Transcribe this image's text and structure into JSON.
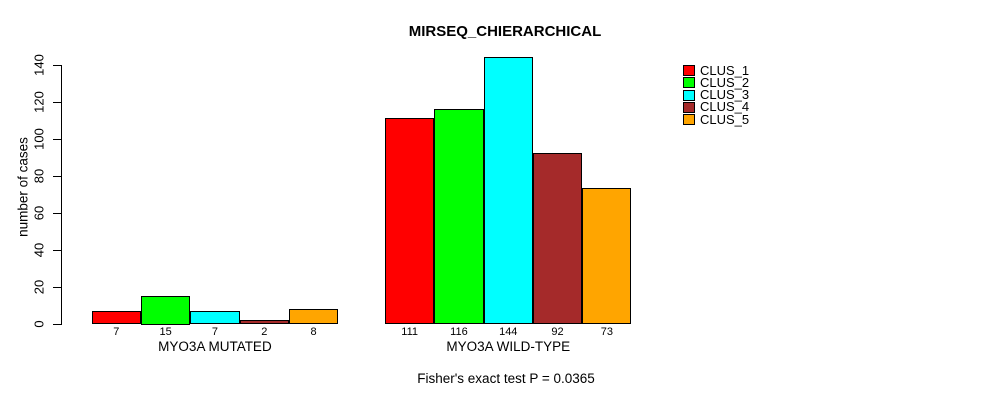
{
  "chart_data": {
    "type": "bar",
    "title": "MIRSEQ_CHIERARCHICAL",
    "ylabel": "number of cases",
    "xlabel": "",
    "annotation": "Fisher's exact test P = 0.0365",
    "ylim": [
      0,
      140
    ],
    "yticks": [
      0,
      20,
      40,
      60,
      80,
      100,
      120,
      140
    ],
    "grid": false,
    "legend_position": "top-right",
    "bar_value_labels": true,
    "categories": [
      "MYO3A MUTATED",
      "MYO3A WILD-TYPE"
    ],
    "series": [
      {
        "name": "CLUS_1",
        "color": "#FF0000",
        "values": [
          7,
          111
        ]
      },
      {
        "name": "CLUS_2",
        "color": "#00FF00",
        "values": [
          15,
          116
        ]
      },
      {
        "name": "CLUS_3",
        "color": "#00FFFF",
        "values": [
          7,
          144
        ]
      },
      {
        "name": "CLUS_4",
        "color": "#A52A2A",
        "values": [
          2,
          92
        ]
      },
      {
        "name": "CLUS_5",
        "color": "#FFA500",
        "values": [
          8,
          73
        ]
      }
    ]
  },
  "colors": {
    "background": "#FFFFFF",
    "axis": "#000000",
    "text": "#000000"
  }
}
